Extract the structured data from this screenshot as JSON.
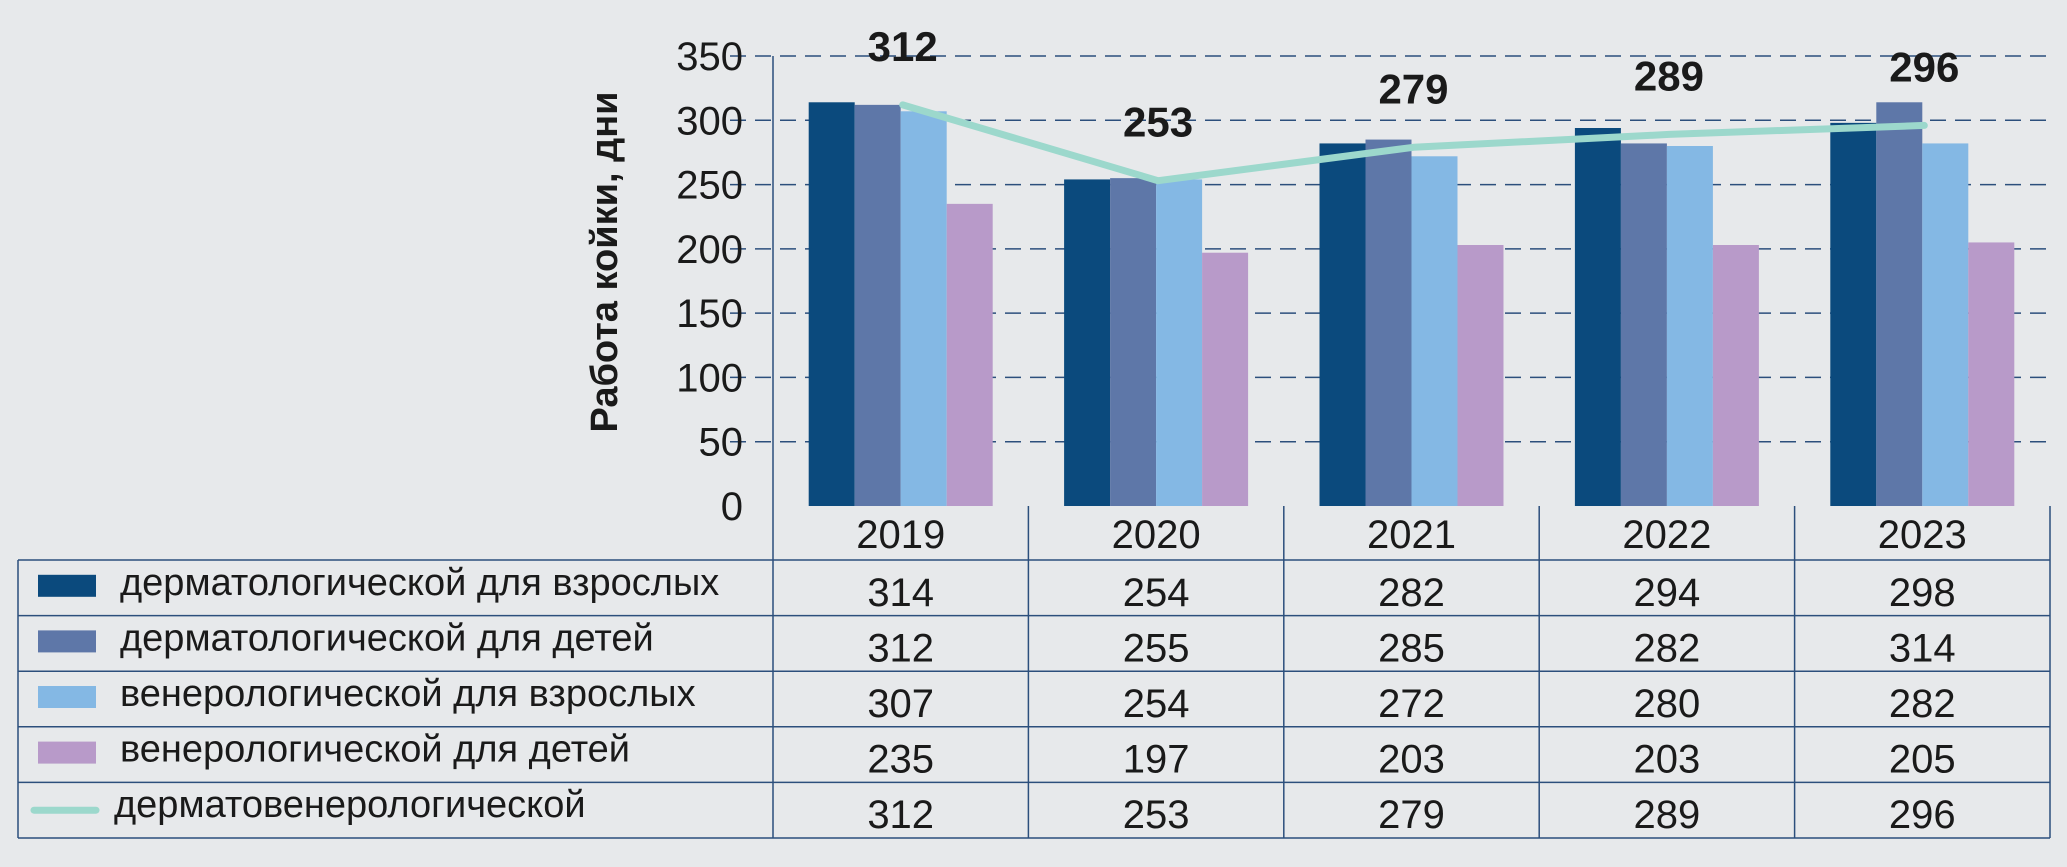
{
  "chart_data": {
    "type": "bar",
    "ylabel": "Работа койки, дни",
    "ylim": [
      0,
      350
    ],
    "yticks": [
      "0",
      "50",
      "100",
      "150",
      "200",
      "250",
      "300",
      "350"
    ],
    "grid": true,
    "categories": [
      "2019",
      "2020",
      "2021",
      "2022",
      "2023"
    ],
    "series": [
      {
        "name": "дерматологической для взрослых",
        "kind": "bar",
        "color": "#0b4a7d",
        "values": [
          314,
          254,
          282,
          294,
          298
        ],
        "labels": [
          "314",
          "254",
          "282",
          "294",
          "298"
        ]
      },
      {
        "name": "дерматологической  для детей",
        "kind": "bar",
        "color": "#5e77a8",
        "values": [
          312,
          255,
          285,
          282,
          314
        ],
        "labels": [
          "312",
          "255",
          "285",
          "282",
          "314"
        ]
      },
      {
        "name": "венерологической для взрослых",
        "kind": "bar",
        "color": "#84b8e4",
        "values": [
          307,
          254,
          272,
          280,
          282
        ],
        "labels": [
          "307",
          "254",
          "272",
          "280",
          "282"
        ]
      },
      {
        "name": "венерологической  для детей",
        "kind": "bar",
        "color": "#b89ac9",
        "values": [
          235,
          197,
          203,
          203,
          205
        ],
        "labels": [
          "235",
          "197",
          "203",
          "203",
          "205"
        ]
      },
      {
        "name": "дерматовенерологической",
        "kind": "line",
        "color": "#9cd8cc",
        "values": [
          312,
          253,
          279,
          289,
          296
        ],
        "labels": [
          "312",
          "253",
          "279",
          "289",
          "296"
        ]
      }
    ]
  }
}
